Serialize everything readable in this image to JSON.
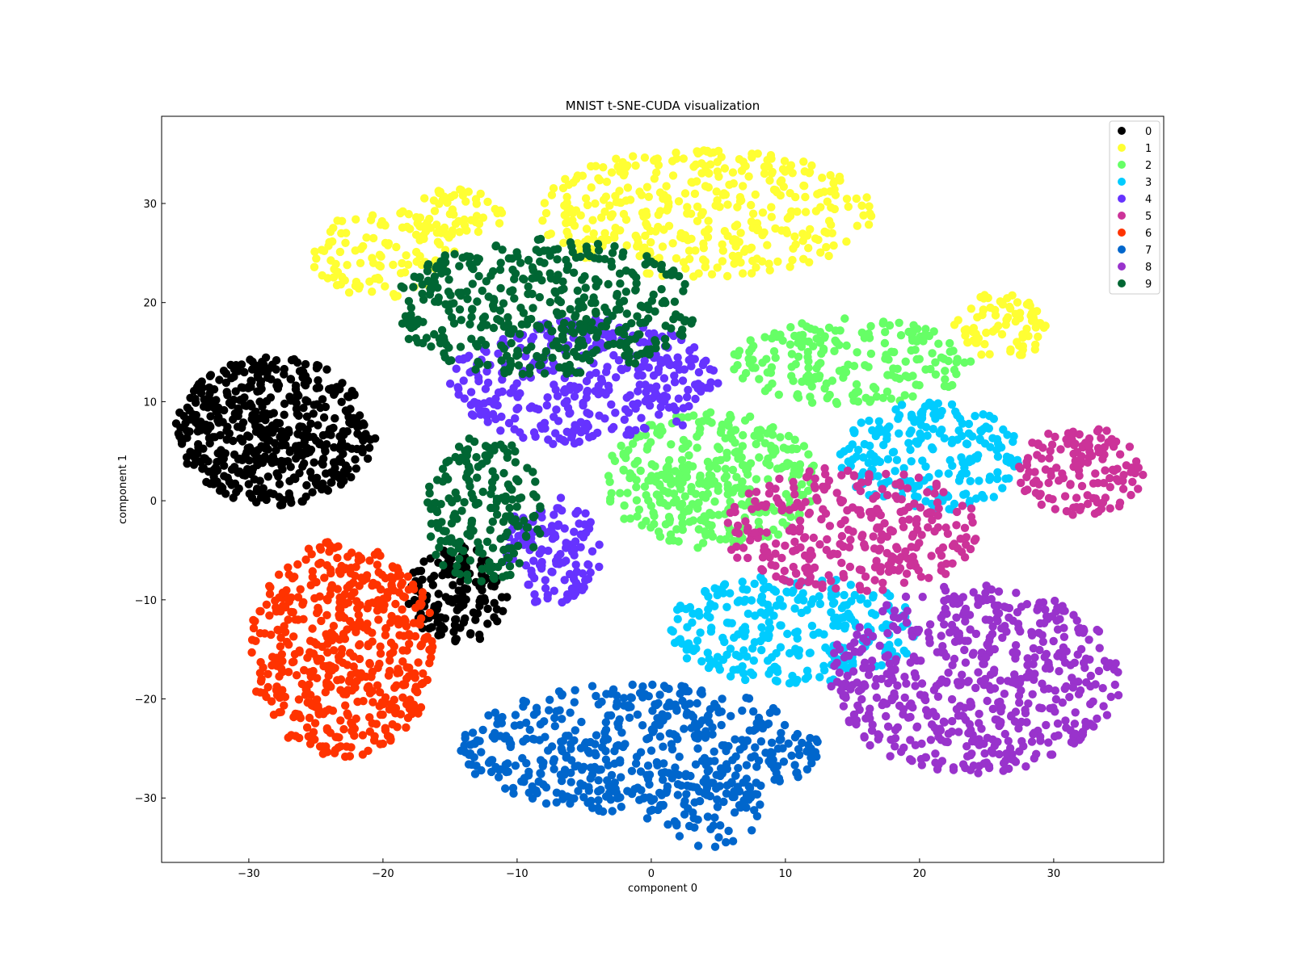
{
  "chart_data": {
    "type": "scatter",
    "title": "MNIST t-SNE-CUDA visualization",
    "xlabel": "component 0",
    "ylabel": "component 1",
    "xlim": [
      -36.5,
      38.2
    ],
    "ylim": [
      -36.5,
      38.8
    ],
    "xticks": [
      -30,
      -20,
      -10,
      0,
      10,
      20,
      30
    ],
    "xtick_labels": [
      "−30",
      "−20",
      "−10",
      "0",
      "10",
      "20",
      "30"
    ],
    "yticks": [
      30,
      20,
      10,
      0,
      -10,
      -20,
      -30
    ],
    "ytick_labels": [
      "30",
      "20",
      "10",
      "0",
      "−10",
      "−20",
      "−30"
    ],
    "grid": false,
    "legend_position": "top-right",
    "legend": [
      "0",
      "1",
      "2",
      "3",
      "4",
      "5",
      "6",
      "7",
      "8",
      "9"
    ],
    "colors": {
      "0": "#000000",
      "1": "#ffff33",
      "2": "#66ff66",
      "3": "#00ccff",
      "4": "#6633ff",
      "5": "#cc3399",
      "6": "#ff3300",
      "7": "#0066cc",
      "8": "#9933cc",
      "9": "#006633"
    },
    "series": [
      {
        "name": "0",
        "clusters": [
          {
            "cx": -28.0,
            "cy": 7.0,
            "rx": 7.5,
            "ry": 7.5,
            "n": 520
          },
          {
            "cx": -14.5,
            "cy": -9.5,
            "rx": 3.8,
            "ry": 5.0,
            "n": 140
          }
        ]
      },
      {
        "name": "1",
        "clusters": [
          {
            "cx": 4.0,
            "cy": 29.0,
            "rx": 12.5,
            "ry": 6.5,
            "n": 380
          },
          {
            "cx": -20.0,
            "cy": 25.0,
            "rx": 5.5,
            "ry": 4.5,
            "n": 110
          },
          {
            "cx": -14.5,
            "cy": 29.0,
            "rx": 3.5,
            "ry": 2.5,
            "n": 50
          },
          {
            "cx": 26.0,
            "cy": 17.5,
            "rx": 3.5,
            "ry": 3.5,
            "n": 80
          }
        ]
      },
      {
        "name": "2",
        "clusters": [
          {
            "cx": 4.5,
            "cy": 2.0,
            "rx": 8.0,
            "ry": 7.0,
            "n": 360
          },
          {
            "cx": 15.0,
            "cy": 14.0,
            "rx": 9.0,
            "ry": 4.5,
            "n": 200
          }
        ]
      },
      {
        "name": "3",
        "clusters": [
          {
            "cx": 10.5,
            "cy": -13.0,
            "rx": 9.5,
            "ry": 5.5,
            "n": 290
          },
          {
            "cx": 21.0,
            "cy": 4.5,
            "rx": 7.0,
            "ry": 5.5,
            "n": 220
          }
        ]
      },
      {
        "name": "4",
        "clusters": [
          {
            "cx": -5.0,
            "cy": 12.0,
            "rx": 10.0,
            "ry": 6.5,
            "n": 360
          },
          {
            "cx": -7.5,
            "cy": -5.0,
            "rx": 3.8,
            "ry": 5.5,
            "n": 130
          }
        ]
      },
      {
        "name": "5",
        "clusters": [
          {
            "cx": 15.0,
            "cy": -3.0,
            "rx": 9.5,
            "ry": 6.5,
            "n": 300
          },
          {
            "cx": 32.0,
            "cy": 3.0,
            "rx": 4.8,
            "ry": 4.5,
            "n": 140
          }
        ]
      },
      {
        "name": "6",
        "clusters": [
          {
            "cx": -23.0,
            "cy": -15.0,
            "rx": 7.0,
            "ry": 11.0,
            "n": 520
          }
        ]
      },
      {
        "name": "7",
        "clusters": [
          {
            "cx": -1.0,
            "cy": -25.0,
            "rx": 13.5,
            "ry": 6.5,
            "n": 500
          },
          {
            "cx": 4.0,
            "cy": -31.5,
            "rx": 4.5,
            "ry": 3.5,
            "n": 60
          }
        ]
      },
      {
        "name": "8",
        "clusters": [
          {
            "cx": 24.0,
            "cy": -18.0,
            "rx": 11.0,
            "ry": 9.5,
            "n": 560
          }
        ]
      },
      {
        "name": "9",
        "clusters": [
          {
            "cx": -8.0,
            "cy": 19.5,
            "rx": 11.5,
            "ry": 7.0,
            "n": 430
          },
          {
            "cx": -12.5,
            "cy": -1.0,
            "rx": 4.5,
            "ry": 7.5,
            "n": 190
          }
        ]
      }
    ]
  }
}
